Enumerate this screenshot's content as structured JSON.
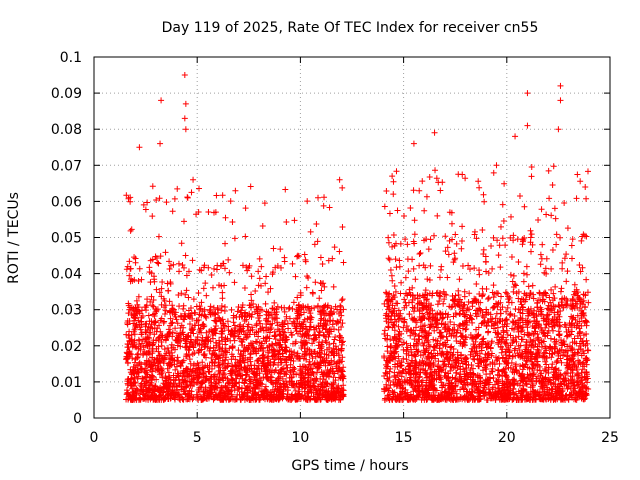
{
  "chart_data": {
    "type": "scatter",
    "title": "Day 119 of 2025, Rate Of TEC Index for receiver cn55",
    "xlabel": "GPS time / hours",
    "ylabel": "ROTI / TECUs",
    "xlim": [
      0,
      25
    ],
    "ylim": [
      0,
      0.1
    ],
    "x_ticks": [
      0,
      5,
      10,
      15,
      20,
      25
    ],
    "y_ticks": [
      0,
      0.01,
      0.02,
      0.03,
      0.04,
      0.05,
      0.06,
      0.07,
      0.08,
      0.09,
      0.1
    ],
    "grid": true,
    "marker": "plus",
    "color": "#ff0000",
    "segments": [
      {
        "x_start": 1.55,
        "x_end": 12.1,
        "typical_low": 0.005,
        "typical_high": 0.04
      },
      {
        "x_start": 14.05,
        "x_end": 23.95,
        "typical_low": 0.005,
        "typical_high": 0.045
      }
    ],
    "notable_points": [
      {
        "x": 4.4,
        "y": 0.095
      },
      {
        "x": 4.45,
        "y": 0.087
      },
      {
        "x": 4.4,
        "y": 0.083
      },
      {
        "x": 4.45,
        "y": 0.08
      },
      {
        "x": 3.25,
        "y": 0.088
      },
      {
        "x": 3.2,
        "y": 0.076
      },
      {
        "x": 2.2,
        "y": 0.075
      },
      {
        "x": 4.8,
        "y": 0.066
      },
      {
        "x": 11.9,
        "y": 0.066
      },
      {
        "x": 16.5,
        "y": 0.079
      },
      {
        "x": 15.5,
        "y": 0.076
      },
      {
        "x": 21.0,
        "y": 0.09
      },
      {
        "x": 21.0,
        "y": 0.081
      },
      {
        "x": 22.6,
        "y": 0.092
      },
      {
        "x": 22.6,
        "y": 0.088
      },
      {
        "x": 22.5,
        "y": 0.08
      },
      {
        "x": 20.4,
        "y": 0.078
      },
      {
        "x": 19.5,
        "y": 0.07
      },
      {
        "x": 23.8,
        "y": 0.064
      },
      {
        "x": 14.5,
        "y": 0.062
      }
    ]
  }
}
